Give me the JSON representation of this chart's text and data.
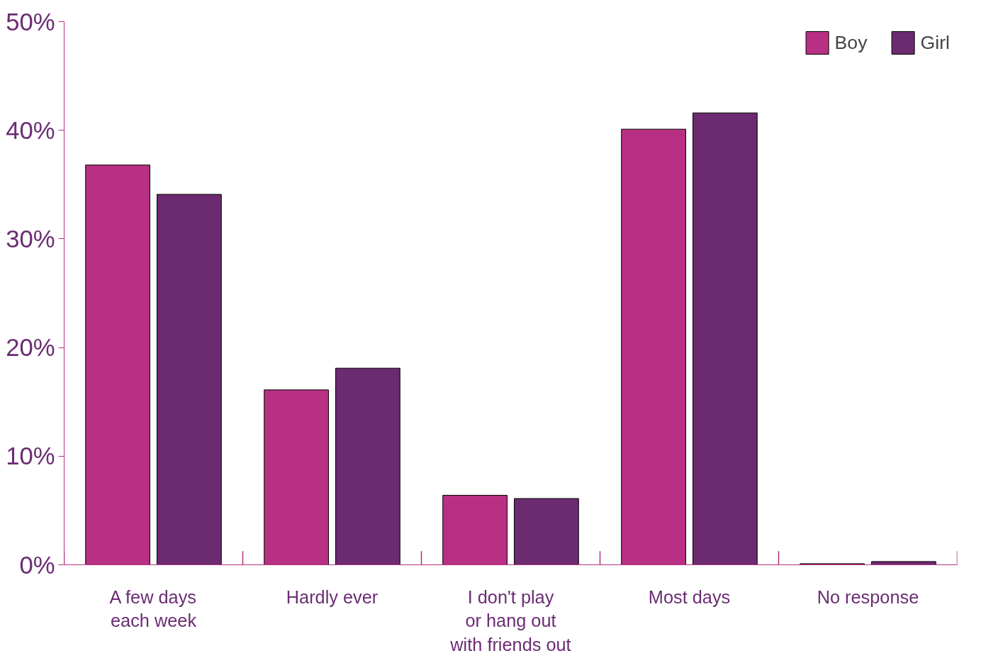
{
  "chart_data": {
    "type": "bar",
    "categories": [
      "A few days\neach week",
      "Hardly ever",
      "I don't play\nor hang out\nwith friends out",
      "Most days",
      "No response"
    ],
    "series": [
      {
        "name": "Boy",
        "color": "#b83083",
        "values": [
          36.8,
          16.1,
          6.4,
          40.1,
          0.1
        ]
      },
      {
        "name": "Girl",
        "color": "#6c2b70",
        "values": [
          34.1,
          18.1,
          6.1,
          41.6,
          0.3
        ]
      }
    ],
    "ylim": [
      0,
      50
    ],
    "yticks": [
      {
        "value": 0,
        "label": "0%"
      },
      {
        "value": 10,
        "label": "10%"
      },
      {
        "value": 20,
        "label": "20%"
      },
      {
        "value": 30,
        "label": "30%"
      },
      {
        "value": 40,
        "label": "40%"
      },
      {
        "value": 50,
        "label": "50%"
      }
    ],
    "grid": false,
    "legend": "top right"
  }
}
